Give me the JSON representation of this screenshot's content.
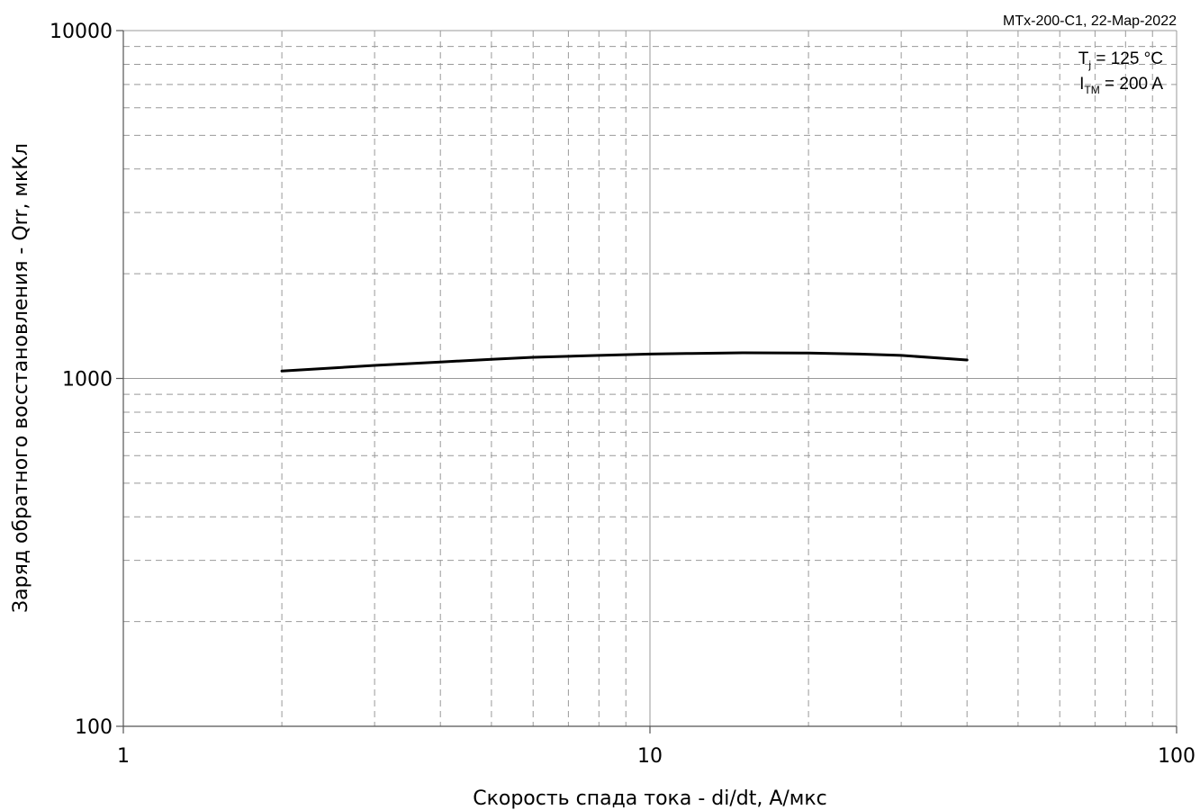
{
  "chart_data": {
    "type": "line",
    "stamp": "MTx-200-C1, 22-Map-2022",
    "xlabel": "Скорость спада тока - di/dt, А/мкс",
    "ylabel": "Заряд обратного восстановления - Qrr, мкКл",
    "x_scale": "log",
    "y_scale": "log",
    "xlim": [
      1,
      100
    ],
    "ylim": [
      100,
      10000
    ],
    "x_ticks": [
      "1",
      "10",
      "100"
    ],
    "y_ticks": [
      "100",
      "1000",
      "10000"
    ],
    "grid": true,
    "line_color": "#000000",
    "annotations": {
      "tj": {
        "symbol": "T",
        "sub": "j",
        "value": " = 125 °C"
      },
      "itm": {
        "symbol": "I",
        "sub": "TM",
        "value": " = 200 A"
      }
    },
    "series": [
      {
        "x": [
          2,
          3,
          4,
          5,
          6,
          8,
          10,
          12,
          15,
          20,
          25,
          30,
          40
        ],
        "y": [
          1050,
          1090,
          1115,
          1135,
          1150,
          1165,
          1175,
          1180,
          1185,
          1183,
          1175,
          1165,
          1130
        ]
      }
    ]
  }
}
